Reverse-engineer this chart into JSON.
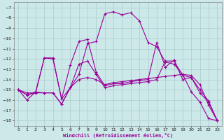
{
  "title": "",
  "xlabel": "Windchill (Refroidissement éolien,°C)",
  "bg_color": "#cce8e8",
  "grid_color": "#aacccc",
  "line_color": "#990099",
  "xlim": [
    -0.5,
    23.5
  ],
  "ylim": [
    -18.5,
    -6.5
  ],
  "xticks": [
    0,
    1,
    2,
    3,
    4,
    5,
    6,
    7,
    8,
    9,
    10,
    11,
    12,
    13,
    14,
    15,
    16,
    17,
    18,
    19,
    20,
    21,
    22,
    23
  ],
  "yticks": [
    -18,
    -17,
    -16,
    -15,
    -14,
    -13,
    -12,
    -11,
    -10,
    -9,
    -8,
    -7
  ],
  "series": [
    {
      "x": [
        0,
        1,
        2,
        3,
        4,
        5,
        6,
        7,
        8,
        9,
        10,
        11,
        12,
        13,
        14,
        15,
        16,
        17,
        18,
        19,
        20,
        21,
        22,
        23
      ],
      "y": [
        -15.0,
        -16.0,
        -15.2,
        -15.3,
        -15.3,
        -16.4,
        -14.8,
        -13.5,
        -10.5,
        -10.3,
        -7.6,
        -7.4,
        -7.7,
        -7.5,
        -8.3,
        -10.4,
        -10.8,
        -12.3,
        -12.5,
        -13.5,
        -15.2,
        -16.2,
        -17.8,
        -18.0
      ]
    },
    {
      "x": [
        0,
        1,
        2,
        3,
        4,
        5,
        6,
        7,
        8,
        9,
        10,
        11,
        12,
        13,
        14,
        15,
        16,
        17,
        18,
        19,
        20,
        21,
        22,
        23
      ],
      "y": [
        -15.0,
        -15.5,
        -15.3,
        -11.9,
        -11.9,
        -15.9,
        -14.8,
        -12.5,
        -12.2,
        -13.5,
        -14.8,
        -14.6,
        -14.5,
        -14.4,
        -14.3,
        -14.2,
        -14.0,
        -12.2,
        -12.2,
        -13.6,
        -13.8,
        -15.0,
        -16.1,
        -18.0
      ]
    },
    {
      "x": [
        0,
        1,
        2,
        3,
        4,
        5,
        6,
        7,
        8,
        9,
        10,
        11,
        12,
        13,
        14,
        15,
        16,
        17,
        18,
        19,
        20,
        21,
        22,
        23
      ],
      "y": [
        -15.0,
        -15.3,
        -15.3,
        -15.3,
        -15.3,
        -16.4,
        -14.8,
        -14.0,
        -13.8,
        -14.0,
        -14.5,
        -14.3,
        -14.2,
        -14.1,
        -14.0,
        -13.9,
        -13.8,
        -13.7,
        -13.6,
        -13.5,
        -13.6,
        -14.5,
        -16.5,
        -18.0
      ]
    },
    {
      "x": [
        0,
        1,
        2,
        3,
        4,
        5,
        6,
        7,
        8,
        9,
        10,
        11,
        12,
        13,
        14,
        15,
        16,
        17,
        18,
        19,
        20,
        21,
        22,
        23
      ],
      "y": [
        -15.0,
        -15.5,
        -15.2,
        -11.9,
        -12.0,
        -15.9,
        -12.6,
        -10.3,
        -10.1,
        -13.3,
        -14.6,
        -14.4,
        -14.4,
        -14.2,
        -14.1,
        -14.0,
        -10.4,
        -12.8,
        -12.1,
        -14.0,
        -13.8,
        -15.3,
        -16.2,
        -18.0
      ]
    }
  ]
}
